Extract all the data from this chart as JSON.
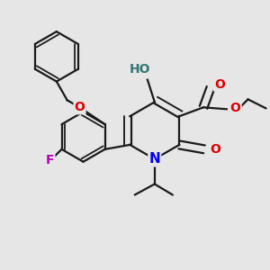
{
  "bg_color": "#e6e6e6",
  "bond_color": "#1a1a1a",
  "bond_width": 1.6,
  "atom_colors": {
    "O": "#dd0000",
    "N": "#0000ee",
    "F": "#bb00bb",
    "H": "#337777",
    "C": "#1a1a1a"
  },
  "font_size_atom": 9,
  "fig_size": [
    3.0,
    3.0
  ],
  "dpi": 100
}
